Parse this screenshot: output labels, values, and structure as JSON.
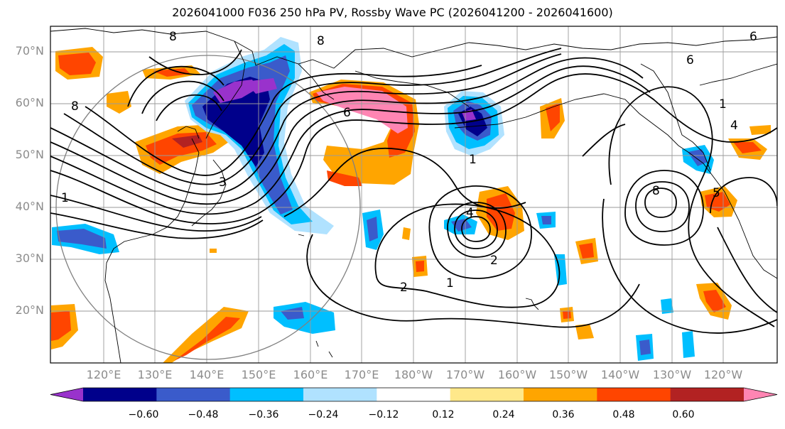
{
  "title": "2026041000 F036 250 hPa PV, Rossby Wave PC (2026041200 - 2026041600)",
  "lat_ticks": [
    "70°N",
    "60°N",
    "50°N",
    "40°N",
    "30°N",
    "20°N"
  ],
  "lon_ticks": [
    "120°E",
    "130°E",
    "140°E",
    "150°E",
    "160°E",
    "170°E",
    "180°W",
    "170°W",
    "160°W",
    "150°W",
    "140°W",
    "130°W",
    "120°W"
  ],
  "contour_labels": {
    "c8_a": "8",
    "c8_b": "8",
    "c8_c": "8",
    "c8_d": "8",
    "c6_a": "6",
    "c6_b": "6",
    "c6_c": "6",
    "c5_a": "5",
    "c4_a": "4",
    "c4_b": "4",
    "c3_a": "3",
    "c2_a": "2",
    "c2_b": "2",
    "c1_a": "1",
    "c1_b": "1",
    "c1_c": "1",
    "c1_d": "1"
  },
  "colorbar": {
    "colors": [
      "#9932CC",
      "#00008B",
      "#3A5BCB",
      "#00BFFF",
      "#B0E2FF",
      "#FFFFFF",
      "#FFE88A",
      "#FFA500",
      "#FF4500",
      "#B22222",
      "#FF85B3"
    ],
    "labels": [
      "−0.60",
      "−0.48",
      "−0.36",
      "−0.24",
      "−0.12",
      "0.12",
      "0.24",
      "0.36",
      "0.48",
      "0.60"
    ]
  }
}
